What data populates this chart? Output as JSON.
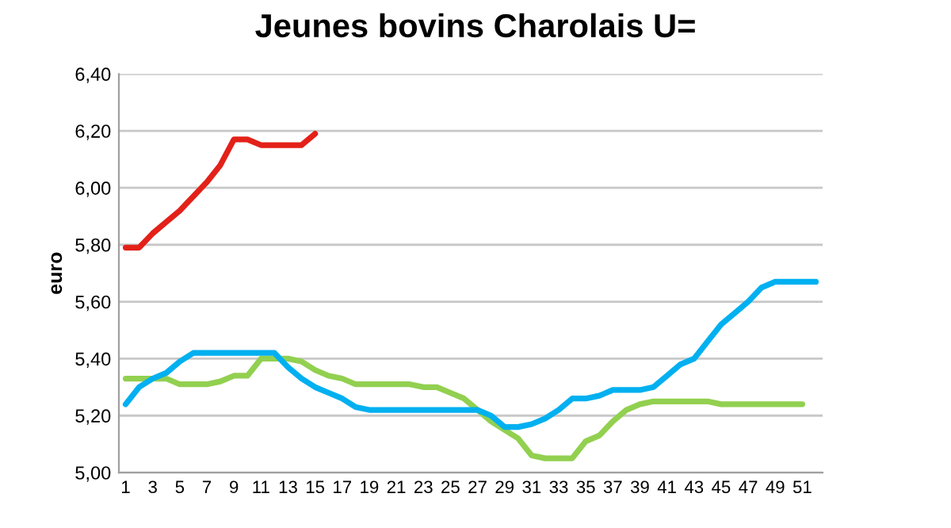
{
  "chart_data": {
    "type": "line",
    "title": "Jeunes bovins Charolais U=",
    "ylabel": "euro",
    "categories": [
      "1",
      null,
      "3",
      null,
      "5",
      null,
      "7",
      null,
      "9",
      null,
      "11",
      null,
      "13",
      null,
      "15",
      null,
      "17",
      null,
      "19",
      null,
      "21",
      null,
      "23",
      null,
      "25",
      null,
      "27",
      null,
      "29",
      null,
      "31",
      null,
      "33",
      null,
      "35",
      null,
      "37",
      null,
      "39",
      null,
      "41",
      null,
      "43",
      null,
      "45",
      null,
      "47",
      null,
      "49",
      null,
      "51",
      null
    ],
    "series": [
      {
        "color": "#92d050",
        "values": [
          5.33,
          5.33,
          5.33,
          5.33,
          5.31,
          5.31,
          5.31,
          5.32,
          5.34,
          5.34,
          5.4,
          5.4,
          5.4,
          5.39,
          5.36,
          5.34,
          5.33,
          5.31,
          5.31,
          5.31,
          5.31,
          5.31,
          5.3,
          5.3,
          5.28,
          5.26,
          5.22,
          5.18,
          5.15,
          5.12,
          5.06,
          5.05,
          5.05,
          5.05,
          5.11,
          5.13,
          5.18,
          5.22,
          5.24,
          5.25,
          5.25,
          5.25,
          5.25,
          5.25,
          5.24,
          5.24,
          5.24,
          5.24,
          5.24,
          5.24,
          5.24,
          null
        ]
      },
      {
        "color": "#00b0f0",
        "values": [
          5.24,
          5.3,
          5.33,
          5.35,
          5.39,
          5.42,
          5.42,
          5.42,
          5.42,
          5.42,
          5.42,
          5.42,
          5.37,
          5.33,
          5.3,
          5.28,
          5.26,
          5.23,
          5.22,
          5.22,
          5.22,
          5.22,
          5.22,
          5.22,
          5.22,
          5.22,
          5.22,
          5.2,
          5.16,
          5.16,
          5.17,
          5.19,
          5.22,
          5.26,
          5.26,
          5.27,
          5.29,
          5.29,
          5.29,
          5.3,
          5.34,
          5.38,
          5.4,
          5.46,
          5.52,
          5.56,
          5.6,
          5.65,
          5.67,
          5.67,
          5.67,
          5.67
        ]
      },
      {
        "color": "#e32119",
        "values": [
          5.79,
          5.79,
          5.84,
          5.88,
          5.92,
          5.97,
          6.02,
          6.08,
          6.17,
          6.17,
          6.15,
          6.15,
          6.15,
          6.15,
          6.19,
          null,
          null,
          null,
          null,
          null,
          null,
          null,
          null,
          null,
          null,
          null,
          null,
          null,
          null,
          null,
          null,
          null,
          null,
          null,
          null,
          null,
          null,
          null,
          null,
          null,
          null,
          null,
          null,
          null,
          null,
          null,
          null,
          null,
          null,
          null,
          null,
          null
        ]
      }
    ],
    "ylim": [
      5.0,
      6.4
    ],
    "yticks": [
      {
        "value": 5.0,
        "label": "5,00"
      },
      {
        "value": 5.2,
        "label": "5,20"
      },
      {
        "value": 5.4,
        "label": "5,40"
      },
      {
        "value": 5.6,
        "label": "5,60"
      },
      {
        "value": 5.8,
        "label": "5,80"
      },
      {
        "value": 6.0,
        "label": "6,00"
      },
      {
        "value": 6.2,
        "label": "6,20"
      },
      {
        "value": 6.4,
        "label": "6,40"
      }
    ],
    "grid": "y",
    "marker": "none",
    "line_style": "solid"
  }
}
